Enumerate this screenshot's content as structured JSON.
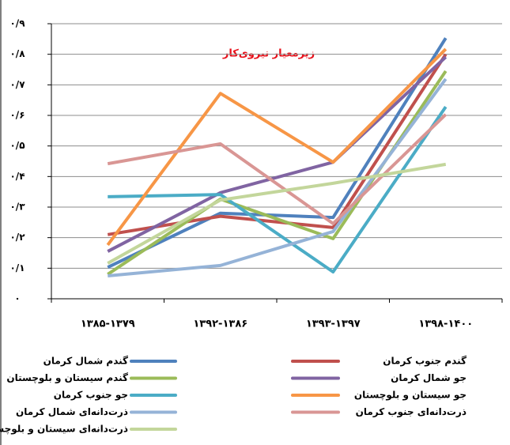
{
  "chart_data": {
    "type": "line",
    "title": "زیرمعیار نیروی‌کار",
    "categories": [
      "۱۳۸۵-۱۳۷۹",
      "۱۳۹۲-۱۳۸۶",
      "۱۳۹۳-۱۳۹۷",
      "۱۳۹۸-۱۴۰۰"
    ],
    "ylim": [
      0,
      0.9
    ],
    "yticks": [
      {
        "value": 0,
        "label": "۰"
      },
      {
        "value": 0.1,
        "label": "۰/۱"
      },
      {
        "value": 0.2,
        "label": "۰/۲"
      },
      {
        "value": 0.3,
        "label": "۰/۳"
      },
      {
        "value": 0.4,
        "label": "۰/۴"
      },
      {
        "value": 0.5,
        "label": "۰/۵"
      },
      {
        "value": 0.6,
        "label": "۰/۶"
      },
      {
        "value": 0.7,
        "label": "۰/۷"
      },
      {
        "value": 0.8,
        "label": "۰/۸"
      },
      {
        "value": 0.9,
        "label": "۰/۹"
      }
    ],
    "grid": true,
    "series": [
      {
        "name": "گندم شمال کرمان",
        "color": "#4f81bd",
        "values": [
          0.103,
          0.28,
          0.266,
          0.853
        ]
      },
      {
        "name": "گندم جنوب کرمان",
        "color": "#c0504d",
        "values": [
          0.21,
          0.27,
          0.233,
          0.8
        ]
      },
      {
        "name": "گندم سیستان و بلوچستان",
        "color": "#9bbb59",
        "values": [
          0.08,
          0.326,
          0.197,
          0.745
        ]
      },
      {
        "name": "جو شمال کرمان",
        "color": "#8064a2",
        "values": [
          0.155,
          0.347,
          0.447,
          0.791
        ]
      },
      {
        "name": "جو جنوب کرمان",
        "color": "#4bacc6",
        "values": [
          0.334,
          0.341,
          0.088,
          0.628
        ]
      },
      {
        "name": "جو سیستان و بلوچستان",
        "color": "#f79646",
        "values": [
          0.176,
          0.672,
          0.447,
          0.817
        ]
      },
      {
        "name": "ذرت‌دانه‌ای شمال کرمان",
        "color": "#95b3d7",
        "values": [
          0.075,
          0.109,
          0.22,
          0.719
        ]
      },
      {
        "name": "ذرت‌دانه‌ای جنوب کرمان",
        "color": "#d99694",
        "values": [
          0.442,
          0.507,
          0.246,
          0.603
        ]
      },
      {
        "name": "ذرت‌دانه‌ای سیستان و بلوچستان",
        "color": "#c3d69b",
        "values": [
          0.116,
          0.323,
          0.378,
          0.44
        ]
      }
    ]
  }
}
